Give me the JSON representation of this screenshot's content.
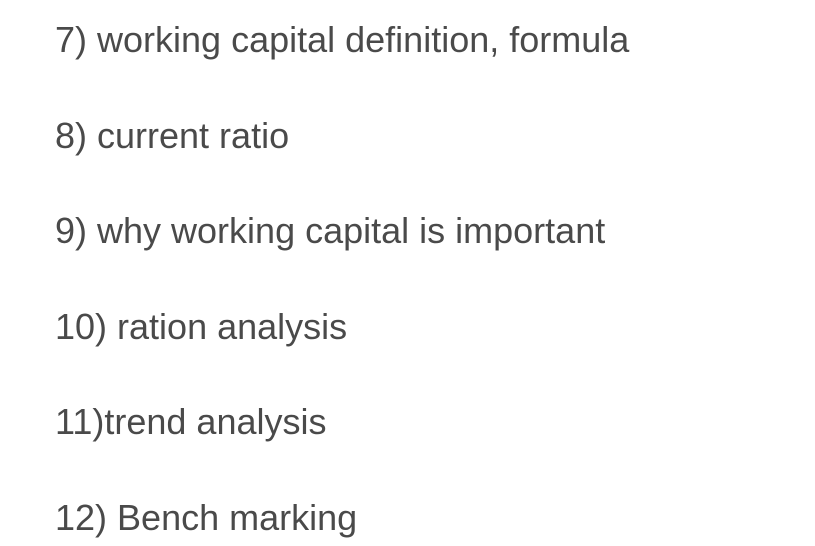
{
  "text_color": "#4a4a4a",
  "background_color": "#ffffff",
  "font_size": 36,
  "font_family": "Arial, Helvetica, sans-serif",
  "line_spacing": 56,
  "items": [
    {
      "number": "7) ",
      "text": "working capital definition, formula"
    },
    {
      "number": "8) ",
      "text": "current ratio"
    },
    {
      "number": "9) ",
      "text": "why working capital is important"
    },
    {
      "number": "10) ",
      "text": "ration analysis"
    },
    {
      "number": "11)",
      "text": "trend analysis"
    },
    {
      "number": "12) ",
      "text": "Bench marking"
    }
  ]
}
